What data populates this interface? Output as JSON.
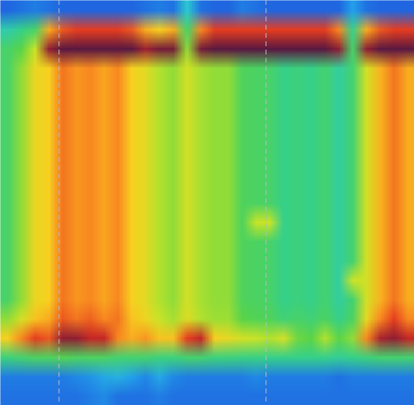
{
  "chart_data": {
    "type": "heatmap",
    "tick_labels": false,
    "xlim": [
      0,
      30
    ],
    "ylim": [
      0,
      21
    ],
    "zlim": [
      0,
      100
    ],
    "colors": [
      "#1a3cc8",
      "#1f66e0",
      "#23a0ea",
      "#2cc8d0",
      "#36d08a",
      "#5ad448",
      "#c8e428",
      "#f8d020",
      "#f88820",
      "#e02a20",
      "#5a1840"
    ],
    "vlines": [
      4.25,
      19.25
    ],
    "cells": [
      [
        10,
        12,
        14,
        12,
        10,
        10,
        10,
        10,
        10,
        10,
        12,
        14,
        12,
        30,
        12,
        10,
        10,
        14,
        12,
        10,
        10,
        10,
        10,
        10,
        10,
        20,
        12,
        10,
        10,
        10
      ],
      [
        35,
        40,
        45,
        75,
        85,
        88,
        88,
        88,
        88,
        85,
        75,
        70,
        75,
        45,
        80,
        88,
        88,
        88,
        88,
        88,
        88,
        88,
        88,
        88,
        80,
        40,
        75,
        85,
        88,
        88
      ],
      [
        45,
        50,
        60,
        96,
        100,
        100,
        100,
        100,
        100,
        100,
        95,
        98,
        98,
        55,
        98,
        100,
        100,
        100,
        100,
        100,
        100,
        100,
        100,
        100,
        96,
        45,
        96,
        100,
        100,
        100
      ],
      [
        45,
        55,
        67,
        70,
        82,
        78,
        80,
        76,
        80,
        70,
        65,
        58,
        55,
        62,
        57,
        55,
        55,
        47,
        46,
        45,
        40,
        42,
        40,
        44,
        37,
        44,
        62,
        74,
        82,
        75
      ],
      [
        45,
        55,
        67,
        70,
        82,
        78,
        80,
        76,
        80,
        70,
        65,
        58,
        55,
        62,
        57,
        55,
        55,
        47,
        46,
        45,
        40,
        42,
        40,
        44,
        37,
        44,
        62,
        74,
        82,
        75
      ],
      [
        45,
        55,
        67,
        70,
        82,
        78,
        80,
        76,
        80,
        70,
        65,
        58,
        55,
        62,
        57,
        55,
        55,
        47,
        46,
        45,
        40,
        42,
        40,
        44,
        37,
        44,
        62,
        74,
        82,
        75
      ],
      [
        45,
        55,
        67,
        70,
        82,
        78,
        80,
        76,
        80,
        70,
        65,
        58,
        55,
        62,
        57,
        55,
        55,
        47,
        46,
        45,
        40,
        42,
        40,
        44,
        37,
        44,
        62,
        74,
        82,
        75
      ],
      [
        45,
        55,
        67,
        70,
        82,
        78,
        80,
        76,
        80,
        70,
        65,
        58,
        55,
        62,
        57,
        55,
        55,
        47,
        46,
        45,
        40,
        42,
        40,
        44,
        37,
        44,
        62,
        74,
        82,
        75
      ],
      [
        45,
        55,
        67,
        70,
        82,
        78,
        80,
        76,
        80,
        70,
        65,
        58,
        55,
        62,
        57,
        55,
        55,
        47,
        46,
        45,
        40,
        42,
        40,
        44,
        37,
        44,
        62,
        74,
        82,
        75
      ],
      [
        45,
        55,
        67,
        70,
        82,
        78,
        80,
        76,
        80,
        70,
        65,
        58,
        55,
        62,
        57,
        55,
        55,
        47,
        46,
        45,
        40,
        42,
        40,
        44,
        37,
        44,
        62,
        74,
        82,
        75
      ],
      [
        45,
        55,
        67,
        70,
        82,
        78,
        80,
        76,
        80,
        70,
        65,
        58,
        55,
        62,
        57,
        55,
        55,
        47,
        46,
        45,
        40,
        42,
        40,
        44,
        37,
        44,
        62,
        74,
        82,
        75
      ],
      [
        45,
        55,
        67,
        70,
        82,
        78,
        80,
        76,
        80,
        70,
        65,
        58,
        55,
        62,
        57,
        55,
        55,
        47,
        60,
        60,
        40,
        42,
        40,
        44,
        37,
        44,
        62,
        74,
        82,
        75
      ],
      [
        45,
        55,
        67,
        70,
        82,
        78,
        80,
        76,
        80,
        70,
        65,
        58,
        55,
        62,
        57,
        55,
        55,
        47,
        46,
        45,
        40,
        42,
        40,
        44,
        37,
        44,
        62,
        74,
        82,
        75
      ],
      [
        45,
        55,
        67,
        70,
        82,
        78,
        80,
        76,
        80,
        70,
        65,
        58,
        55,
        62,
        57,
        55,
        55,
        47,
        46,
        45,
        40,
        42,
        40,
        44,
        37,
        44,
        62,
        74,
        82,
        75
      ],
      [
        45,
        55,
        67,
        70,
        82,
        78,
        80,
        76,
        80,
        70,
        65,
        58,
        55,
        62,
        57,
        55,
        55,
        47,
        46,
        45,
        40,
        42,
        40,
        44,
        37,
        60,
        62,
        74,
        82,
        75
      ],
      [
        45,
        55,
        67,
        70,
        82,
        78,
        80,
        76,
        80,
        70,
        65,
        58,
        55,
        62,
        57,
        55,
        55,
        47,
        46,
        45,
        40,
        42,
        40,
        44,
        37,
        44,
        62,
        74,
        82,
        75
      ],
      [
        55,
        62,
        72,
        75,
        85,
        82,
        84,
        80,
        82,
        72,
        68,
        60,
        57,
        64,
        58,
        56,
        56,
        50,
        48,
        47,
        43,
        45,
        43,
        46,
        40,
        46,
        66,
        80,
        88,
        80
      ],
      [
        70,
        80,
        88,
        85,
        96,
        96,
        92,
        92,
        80,
        75,
        78,
        72,
        72,
        88,
        92,
        70,
        66,
        62,
        60,
        58,
        62,
        52,
        50,
        58,
        50,
        55,
        80,
        94,
        96,
        92
      ],
      [
        42,
        44,
        46,
        46,
        48,
        46,
        46,
        46,
        44,
        44,
        44,
        42,
        42,
        44,
        44,
        42,
        42,
        41,
        41,
        40,
        40,
        40,
        40,
        40,
        38,
        40,
        42,
        44,
        44,
        44
      ],
      [
        14,
        14,
        14,
        14,
        14,
        16,
        18,
        22,
        24,
        20,
        16,
        22,
        16,
        14,
        14,
        14,
        14,
        14,
        16,
        14,
        14,
        14,
        14,
        14,
        12,
        14,
        14,
        14,
        14,
        14
      ],
      [
        12,
        12,
        12,
        12,
        12,
        12,
        14,
        16,
        12,
        12,
        12,
        14,
        12,
        12,
        12,
        12,
        12,
        12,
        12,
        12,
        12,
        12,
        12,
        12,
        12,
        12,
        12,
        12,
        12,
        12
      ]
    ]
  }
}
